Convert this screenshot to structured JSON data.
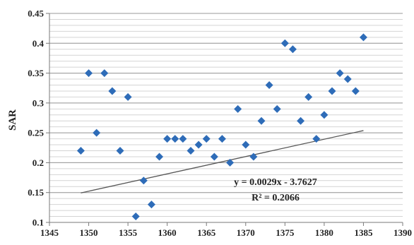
{
  "chart_data": {
    "type": "scatter",
    "title": "",
    "xlabel": "",
    "ylabel": "SAR",
    "xlim": [
      1345,
      1390
    ],
    "ylim": [
      0.1,
      0.45
    ],
    "x_ticks": [
      1345,
      1350,
      1355,
      1360,
      1365,
      1370,
      1375,
      1380,
      1385,
      1390
    ],
    "y_ticks": [
      0.1,
      0.15,
      0.2,
      0.25,
      0.3,
      0.35,
      0.4,
      0.45
    ],
    "x_tick_labels": [
      "1345",
      "1350",
      "1355",
      "1360",
      "1365",
      "1370",
      "1375",
      "1380",
      "1385",
      "1390"
    ],
    "y_tick_labels": [
      "0.1",
      "0.15",
      "0.2",
      "0.25",
      "0.3",
      "0.35",
      "0.4",
      "0.45"
    ],
    "minor_y_step": 0.01,
    "grid": true,
    "marker_color": "#2e6cb8",
    "trend_color": "#555555",
    "points": [
      {
        "x": 1349,
        "y": 0.22
      },
      {
        "x": 1350,
        "y": 0.35
      },
      {
        "x": 1351,
        "y": 0.25
      },
      {
        "x": 1352,
        "y": 0.35
      },
      {
        "x": 1353,
        "y": 0.32
      },
      {
        "x": 1354,
        "y": 0.22
      },
      {
        "x": 1355,
        "y": 0.31
      },
      {
        "x": 1356,
        "y": 0.11
      },
      {
        "x": 1357,
        "y": 0.17
      },
      {
        "x": 1358,
        "y": 0.13
      },
      {
        "x": 1359,
        "y": 0.21
      },
      {
        "x": 1360,
        "y": 0.24
      },
      {
        "x": 1361,
        "y": 0.24
      },
      {
        "x": 1362,
        "y": 0.24
      },
      {
        "x": 1363,
        "y": 0.22
      },
      {
        "x": 1364,
        "y": 0.23
      },
      {
        "x": 1365,
        "y": 0.24
      },
      {
        "x": 1366,
        "y": 0.21
      },
      {
        "x": 1367,
        "y": 0.24
      },
      {
        "x": 1368,
        "y": 0.2
      },
      {
        "x": 1369,
        "y": 0.29
      },
      {
        "x": 1370,
        "y": 0.23
      },
      {
        "x": 1371,
        "y": 0.21
      },
      {
        "x": 1372,
        "y": 0.27
      },
      {
        "x": 1373,
        "y": 0.33
      },
      {
        "x": 1374,
        "y": 0.29
      },
      {
        "x": 1375,
        "y": 0.4
      },
      {
        "x": 1376,
        "y": 0.39
      },
      {
        "x": 1377,
        "y": 0.27
      },
      {
        "x": 1378,
        "y": 0.31
      },
      {
        "x": 1379,
        "y": 0.24
      },
      {
        "x": 1380,
        "y": 0.28
      },
      {
        "x": 1381,
        "y": 0.32
      },
      {
        "x": 1382,
        "y": 0.35
      },
      {
        "x": 1383,
        "y": 0.34
      },
      {
        "x": 1384,
        "y": 0.32
      },
      {
        "x": 1385,
        "y": 0.41
      }
    ],
    "trendline": {
      "slope": 0.0029,
      "intercept": -3.7627,
      "x_range": [
        1349,
        1385
      ],
      "equation_text": "y = 0.0029x - 3.7627",
      "r2_text": "R² = 0.2066"
    }
  }
}
